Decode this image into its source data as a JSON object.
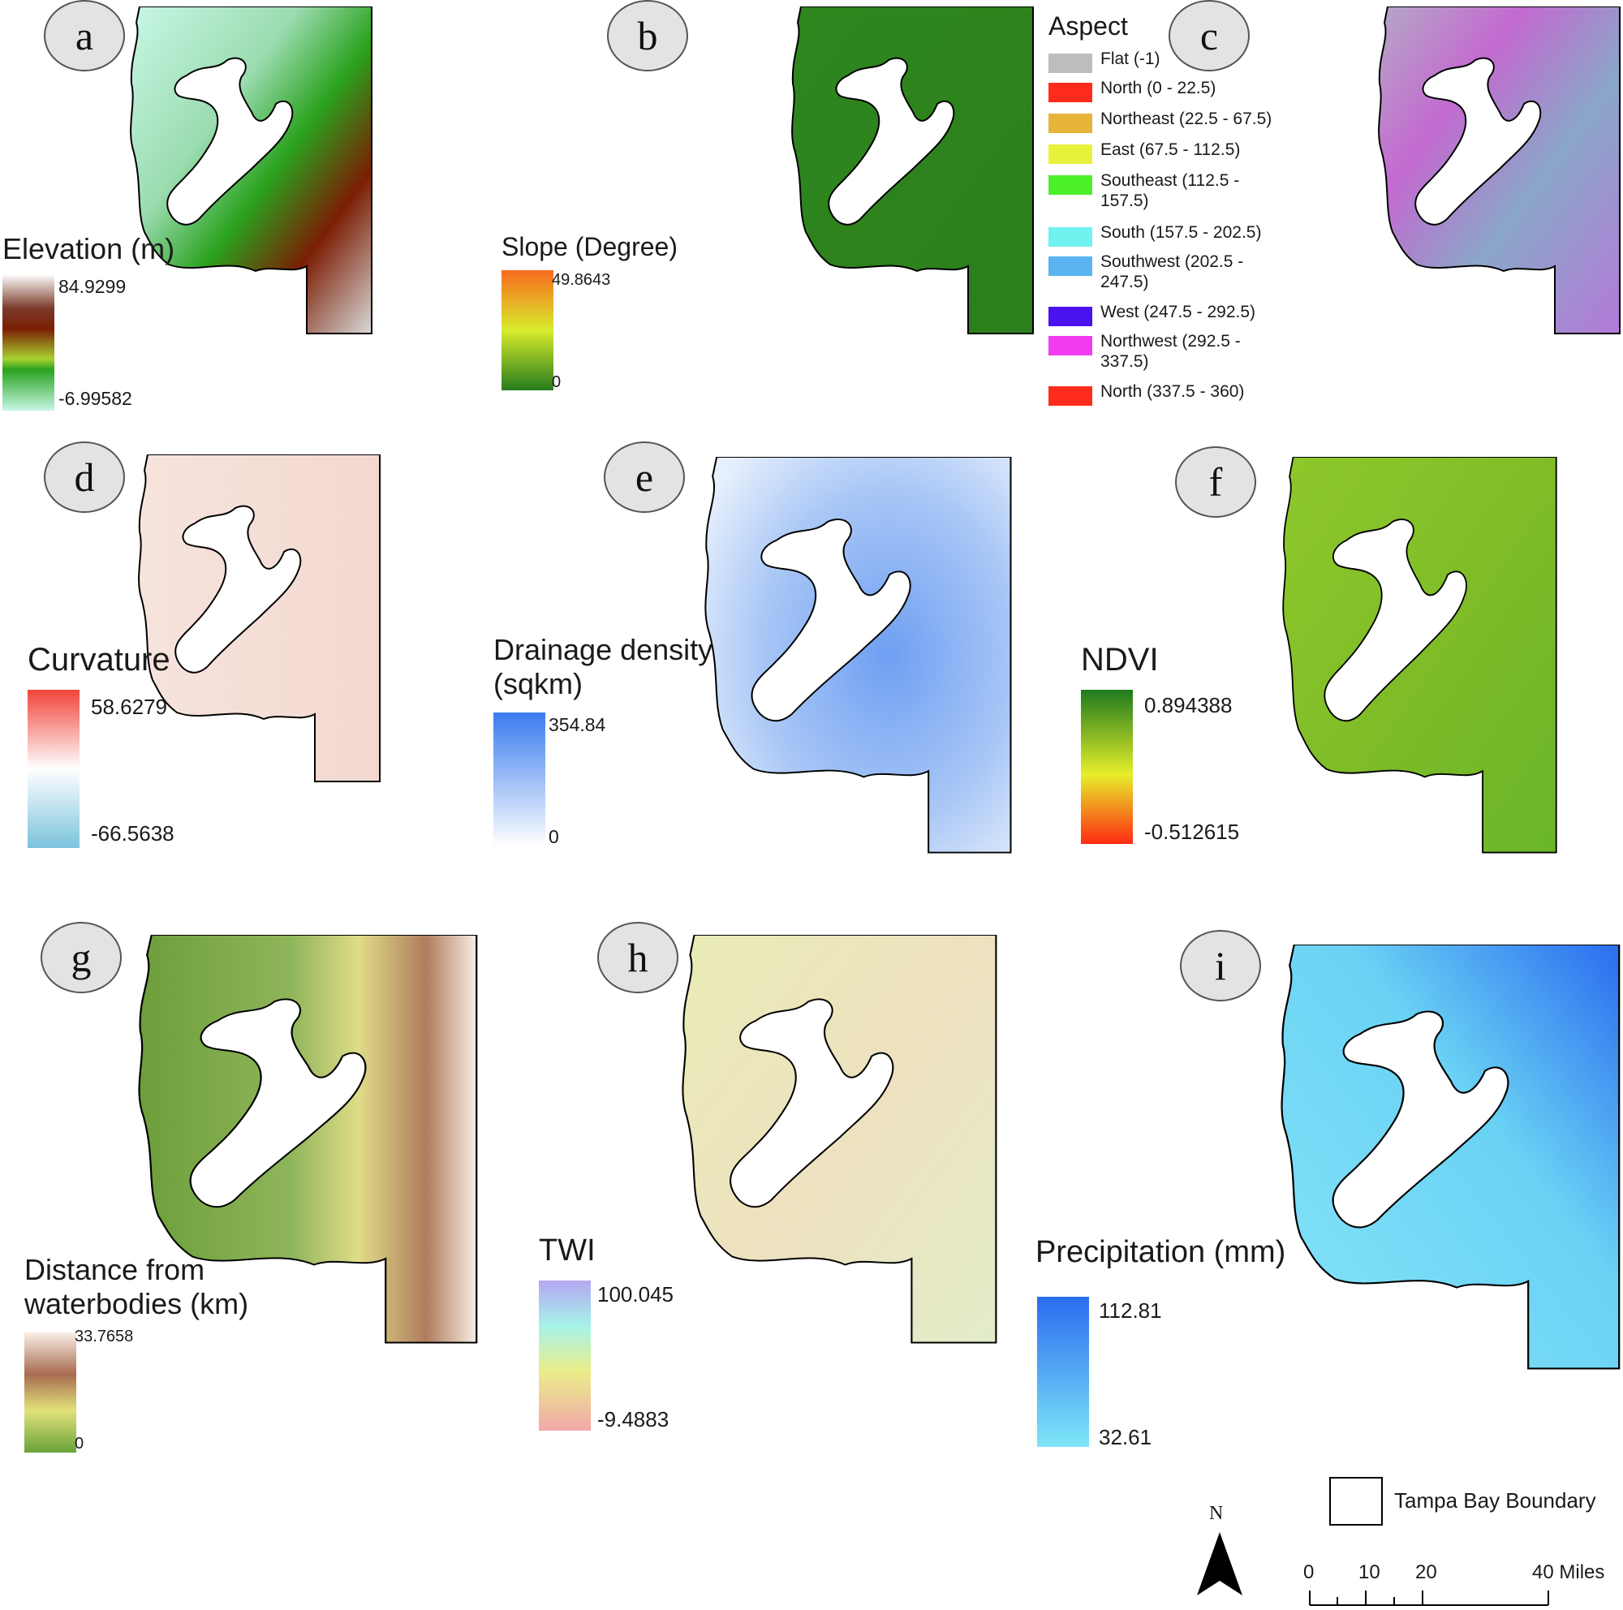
{
  "panels": {
    "a": {
      "letter": "a",
      "legend_title": "Elevation (m)",
      "max": "84.9299",
      "min": "-6.99582"
    },
    "b": {
      "letter": "b",
      "legend_title": "Slope (Degree)",
      "max": "49.8643",
      "min": "0"
    },
    "c": {
      "letter": "c",
      "legend_title": "Aspect",
      "classes": [
        {
          "label": "Flat (-1)",
          "color": "#bdbdbd"
        },
        {
          "label": "North (0 - 22.5)",
          "color": "#ff2b1c"
        },
        {
          "label": "Northeast (22.5 - 67.5)",
          "color": "#e6b43a"
        },
        {
          "label": "East (67.5 - 112.5)",
          "color": "#e8f23c"
        },
        {
          "label": "Southeast (112.5 - 157.5)",
          "color": "#4cf029"
        },
        {
          "label": "South (157.5 - 202.5)",
          "color": "#6ff2f0"
        },
        {
          "label": "Southwest (202.5 - 247.5)",
          "color": "#5ab4f2"
        },
        {
          "label": "West (247.5 - 292.5)",
          "color": "#4a12ee"
        },
        {
          "label": "Northwest (292.5 - 337.5)",
          "color": "#f23cf0"
        },
        {
          "label": "North (337.5 - 360)",
          "color": "#ff2b1c"
        }
      ]
    },
    "d": {
      "letter": "d",
      "legend_title": "Curvature",
      "max": "58.6279",
      "min": "-66.5638"
    },
    "e": {
      "letter": "e",
      "legend_title_1": "Drainage density",
      "legend_title_2": "(sqkm)",
      "max": "354.84",
      "min": "0"
    },
    "f": {
      "letter": "f",
      "legend_title": "NDVI",
      "max": "0.894388",
      "min": "-0.512615"
    },
    "g": {
      "letter": "g",
      "legend_title_1": "Distance from",
      "legend_title_2": "waterbodies (km)",
      "max": "33.7658",
      "min": "0"
    },
    "h": {
      "letter": "h",
      "legend_title": "TWI",
      "max": "100.045",
      "min": "-9.4883"
    },
    "i": {
      "letter": "i",
      "legend_title": "Precipitation (mm)",
      "max": "112.81",
      "min": "32.61"
    }
  },
  "north_arrow": {
    "label": "N"
  },
  "boundary_legend": {
    "label": "Tampa Bay Boundary"
  },
  "scale_bar": {
    "ticks": [
      "0",
      "10",
      "20"
    ],
    "end_label": "40 Miles"
  },
  "colors": {
    "elevation": [
      "#c8f7e6",
      "#2aa21e",
      "#7b1e04",
      "#ffffff"
    ],
    "slope": [
      "#267c1c",
      "#d8ec2c",
      "#f86a1e"
    ],
    "curvature": [
      "#7bc3dd",
      "#ffffff",
      "#f0453a"
    ],
    "drainage": [
      "#ffffff",
      "#3a7cef"
    ],
    "ndvi": [
      "#ff2a12",
      "#e6ee2a",
      "#1e7a1e"
    ],
    "distance": [
      "#6aa23a",
      "#e2e27a",
      "#a86c50",
      "#faeee6"
    ],
    "twi": [
      "#f2a8a8",
      "#e9ee8a",
      "#a6f2ea",
      "#b6a6f2"
    ],
    "precip": [
      "#7ee6f8",
      "#2a6cef"
    ]
  }
}
